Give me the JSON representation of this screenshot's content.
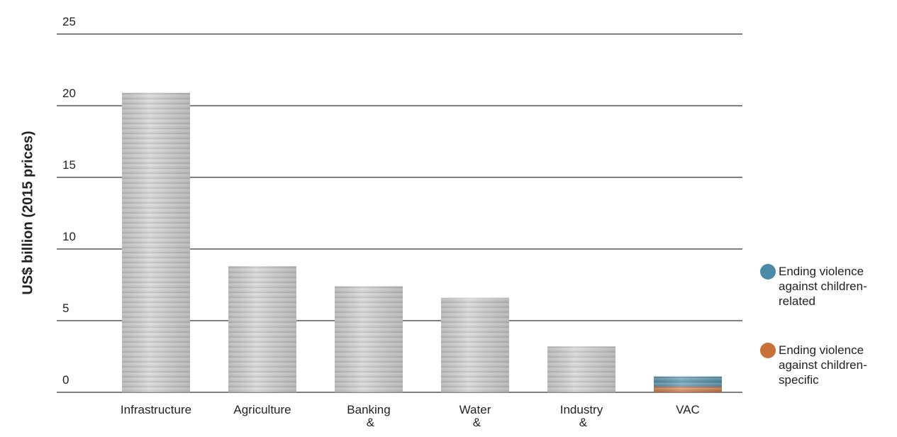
{
  "chart_data": {
    "type": "bar",
    "y_label": "US$ billion (2015 prices)",
    "categories": [
      "Infrastructure",
      "Agriculture",
      "Banking &",
      "Water &",
      "Industry &",
      "VAC"
    ],
    "series": [
      {
        "color": "#c9c9c9",
        "values": [
          20.9,
          8.8,
          7.4,
          6.6,
          3.2,
          null
        ]
      },
      {
        "name": "Ending violence against children-specific",
        "color": "#c8703a",
        "values": [
          null,
          null,
          null,
          null,
          null,
          0.4
        ]
      },
      {
        "name": "Ending violence against children-related",
        "color": "#4a8aa6",
        "values": [
          null,
          null,
          null,
          null,
          null,
          0.7
        ]
      }
    ],
    "ylim": [
      0,
      25
    ],
    "yticks": [
      0,
      5,
      10,
      15,
      20,
      25
    ],
    "grid": true,
    "stacked": true
  }
}
